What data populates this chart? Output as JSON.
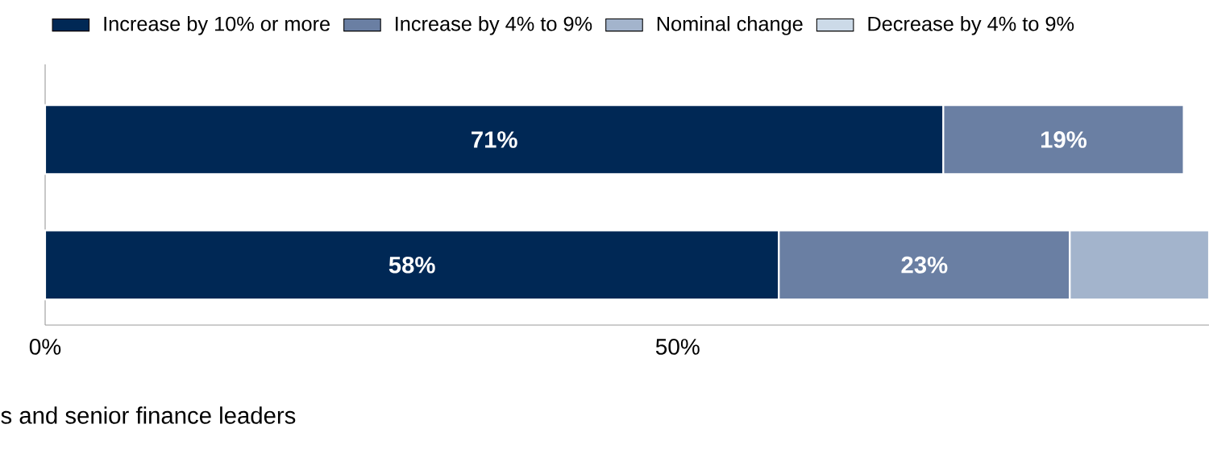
{
  "chart_data": {
    "type": "bar",
    "orientation": "horizontal",
    "stacked": true,
    "categories": [
      null,
      null
    ],
    "series": [
      {
        "name": "Increase by 10% or more",
        "color": "#002855",
        "values": [
          71,
          58
        ],
        "value_labels": [
          "71%",
          "58%"
        ]
      },
      {
        "name": "Increase by 4% to 9%",
        "color": "#6a7fa3",
        "values": [
          19,
          23
        ],
        "value_labels": [
          "19%",
          "23%"
        ]
      },
      {
        "name": "Nominal change",
        "color": "#a3b4cc",
        "values": [
          null,
          11
        ],
        "value_labels": [
          null,
          null
        ]
      },
      {
        "name": "Decrease by 4% to 9%",
        "color": "#ccdae8",
        "values": [
          null,
          null
        ],
        "value_labels": [
          null,
          null
        ]
      }
    ],
    "xlim": [
      0,
      92
    ],
    "xticks": [
      {
        "value": 0,
        "label": "0%"
      },
      {
        "value": 50,
        "label": "50%"
      }
    ],
    "legend": "top left",
    "annotations": [
      "s and senior finance leaders"
    ]
  }
}
